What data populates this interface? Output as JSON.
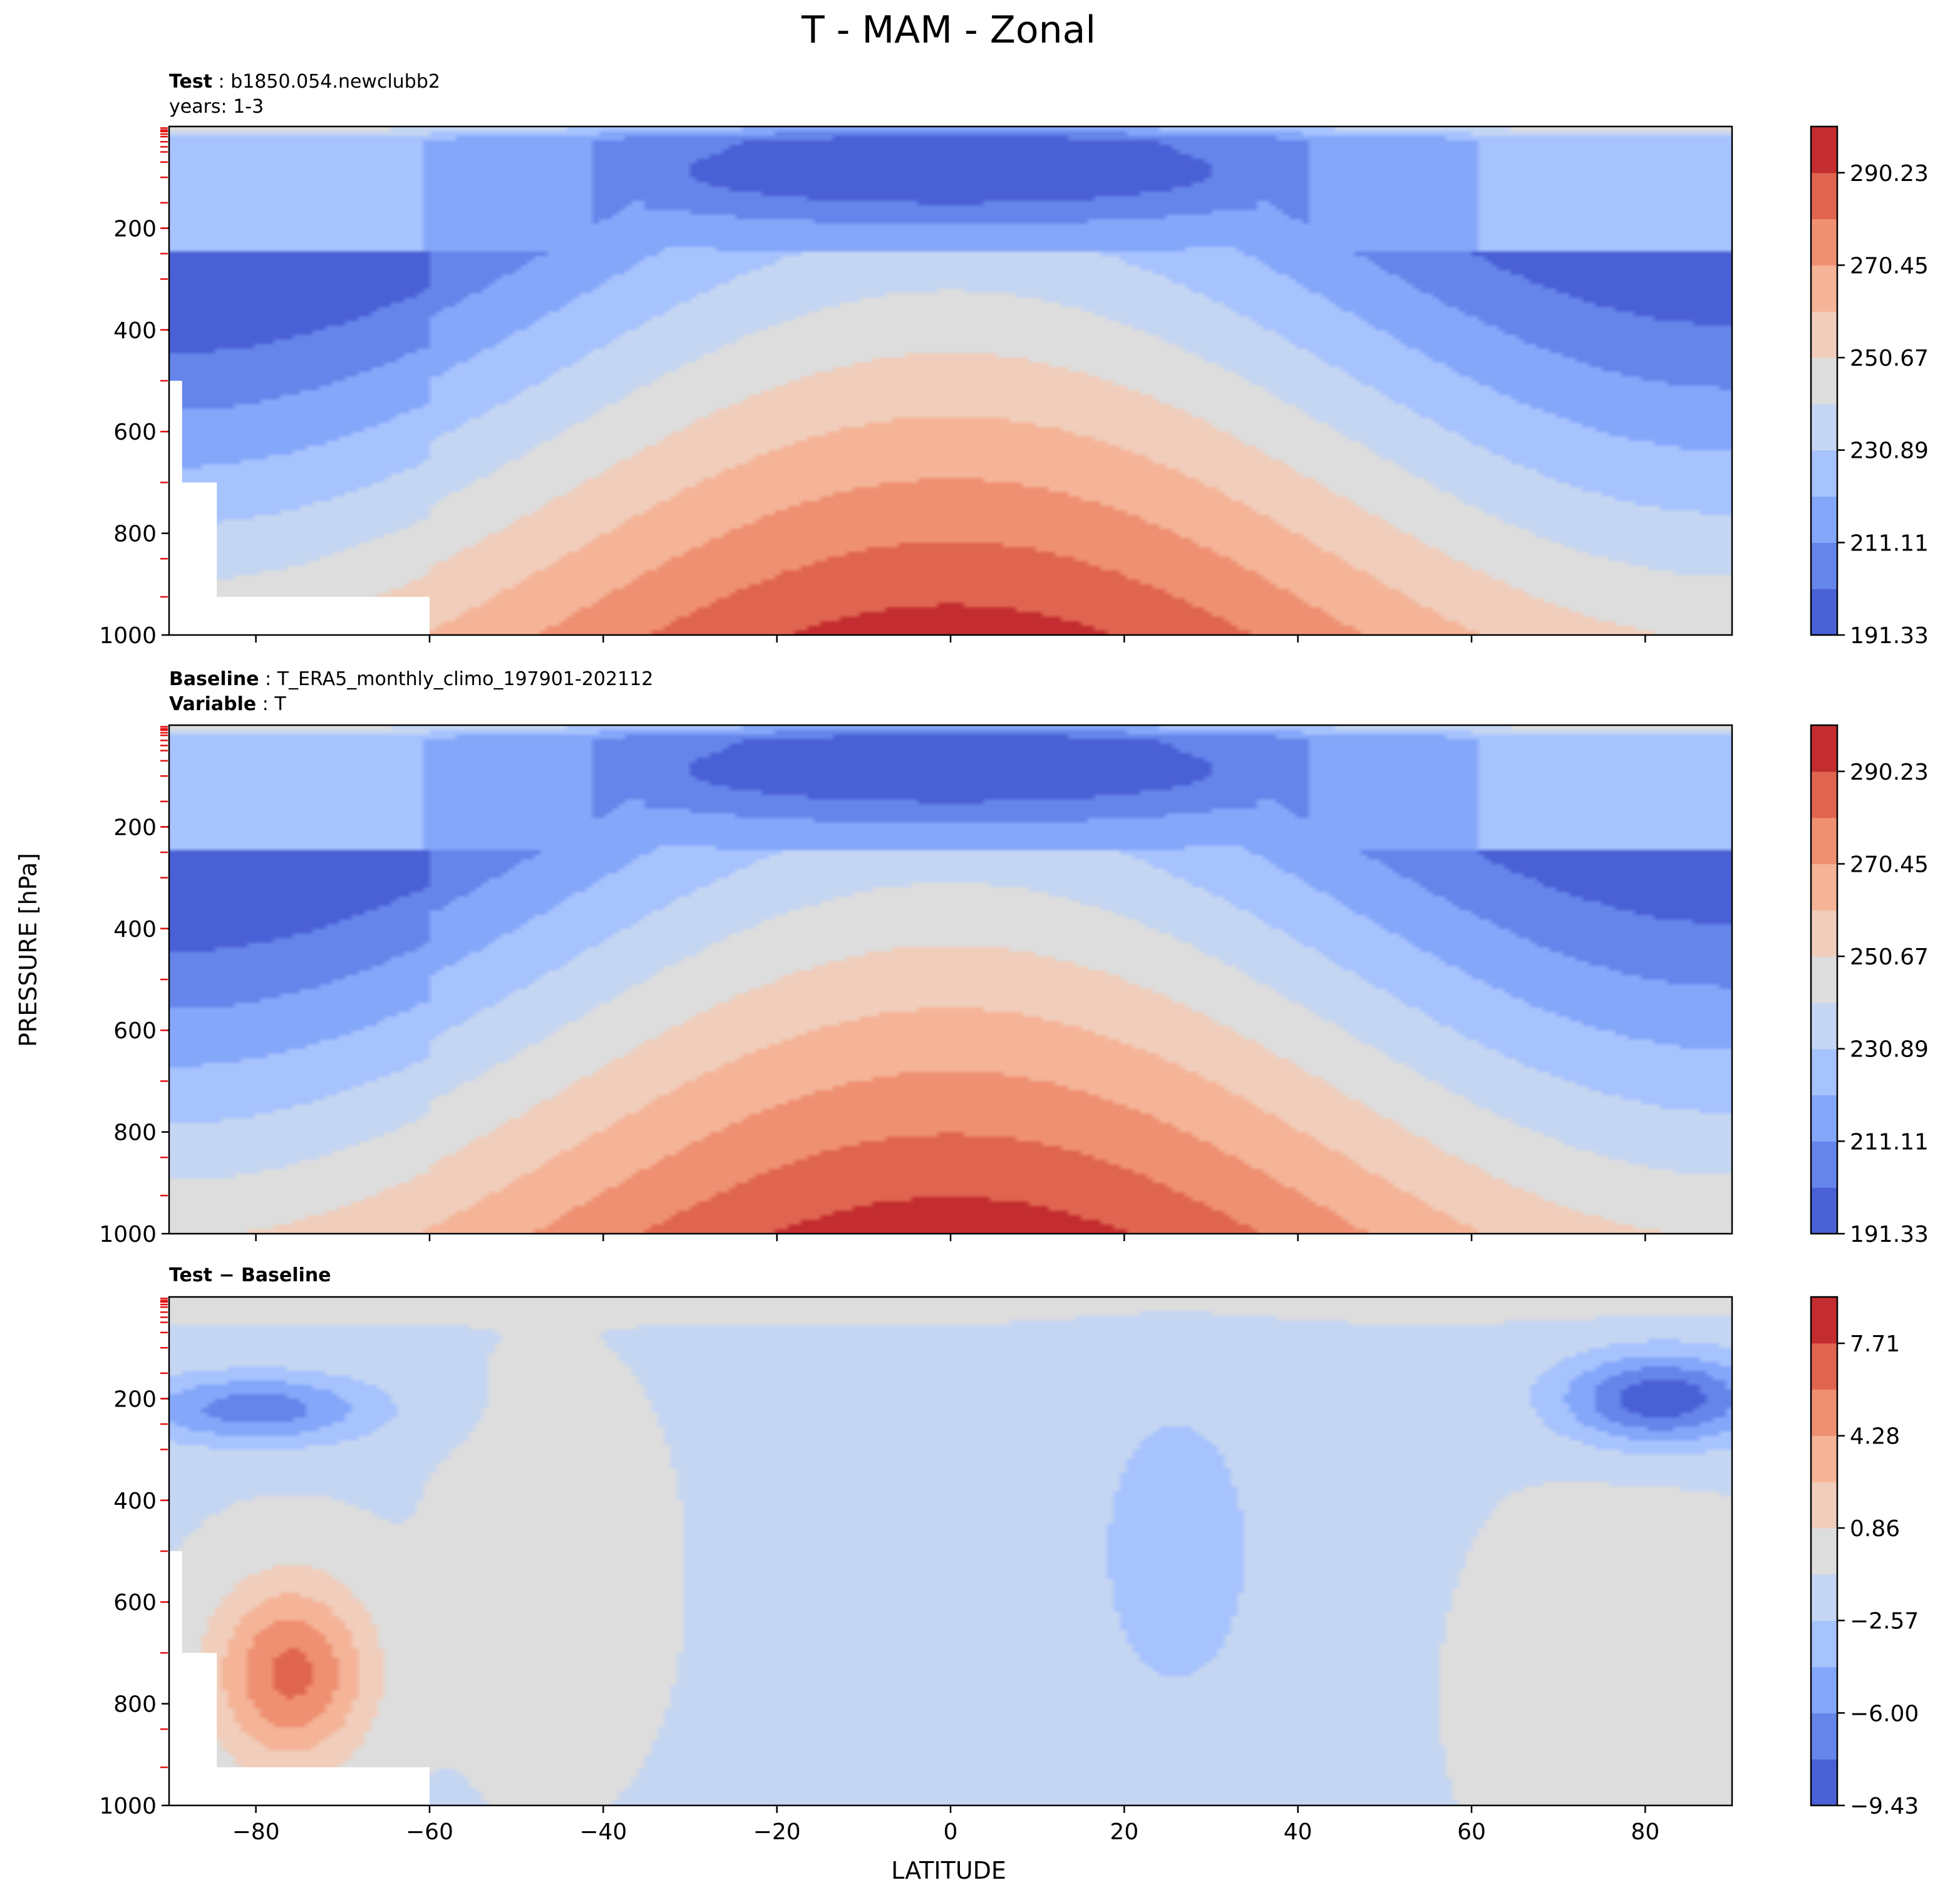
{
  "figure": {
    "title": "T - MAM - Zonal",
    "xlabel": "LATITUDE",
    "ylabel": "PRESSURE [hPa]"
  },
  "panels": [
    {
      "info": [
        {
          "key": "Test",
          "value": "b1850.054.newclubb2"
        },
        {
          "key": "",
          "value": "years: 1-3"
        }
      ]
    },
    {
      "info": [
        {
          "key": "Baseline",
          "value": "T_ERA5_monthly_climo_197901-202112"
        },
        {
          "key": "Variable",
          "value": "T"
        }
      ]
    },
    {
      "info": [
        {
          "key": "Test − Baseline",
          "value": ""
        }
      ]
    }
  ],
  "colors": {
    "diverging": [
      "#4a60d5",
      "#6585ea",
      "#85a7fa",
      "#a7c3fe",
      "#c5d6f2",
      "#dddddd",
      "#f1cdbb",
      "#f5b497",
      "#ef9072",
      "#e06550",
      "#c32d2f"
    ]
  },
  "chart_data": [
    {
      "type": "heatmap",
      "name": "test",
      "x_axis": {
        "range": [
          -90,
          90
        ],
        "ticks": [
          -80,
          -60,
          -40,
          -20,
          0,
          20,
          40,
          60,
          80
        ],
        "tick_labels": [
          "−80",
          "−60",
          "−40",
          "−20",
          "0",
          "20",
          "40",
          "60",
          "80"
        ]
      },
      "y_axis": {
        "range": [
          1000,
          0
        ],
        "ticks": [
          200,
          400,
          600,
          800,
          1000
        ]
      },
      "colorbar": {
        "levels": [
          191.33,
          201.22,
          211.11,
          221.0,
          230.89,
          240.78,
          250.67,
          260.56,
          270.45,
          280.34,
          290.23,
          300.12
        ],
        "tick_values": [
          191.33,
          211.11,
          230.89,
          250.67,
          270.45,
          290.23
        ],
        "tick_labels": [
          "191.33",
          "211.11",
          "230.89",
          "250.67",
          "270.45",
          "290.23"
        ]
      },
      "params": {
        "tmax": 295,
        "tmin_high": 228,
        "cold_core": 200,
        "spole_bias": 0
      }
    },
    {
      "type": "heatmap",
      "name": "baseline",
      "x_axis": {
        "range": [
          -90,
          90
        ],
        "ticks": [
          -80,
          -60,
          -40,
          -20,
          0,
          20,
          40,
          60,
          80
        ],
        "tick_labels": [
          "−80",
          "−60",
          "−40",
          "−20",
          "0",
          "20",
          "40",
          "60",
          "80"
        ]
      },
      "y_axis": {
        "range": [
          1000,
          0
        ],
        "ticks": [
          200,
          400,
          600,
          800,
          1000
        ]
      },
      "colorbar": {
        "levels": [
          191.33,
          201.22,
          211.11,
          221.0,
          230.89,
          240.78,
          250.67,
          260.56,
          270.45,
          280.34,
          290.23,
          300.12
        ],
        "tick_values": [
          191.33,
          211.11,
          230.89,
          250.67,
          270.45,
          290.23
        ],
        "tick_labels": [
          "191.33",
          "211.11",
          "230.89",
          "250.67",
          "270.45",
          "290.23"
        ]
      },
      "params": {
        "tmax": 296,
        "tmin_high": 229,
        "cold_core": 200,
        "spole_bias": 0
      }
    },
    {
      "type": "heatmap",
      "name": "difference",
      "x_axis": {
        "range": [
          -90,
          90
        ],
        "ticks": [
          -80,
          -60,
          -40,
          -20,
          0,
          20,
          40,
          60,
          80
        ],
        "tick_labels": [
          "−80",
          "−60",
          "−40",
          "−20",
          "0",
          "20",
          "40",
          "60",
          "80"
        ]
      },
      "y_axis": {
        "range": [
          1000,
          0
        ],
        "ticks": [
          200,
          400,
          600,
          800,
          1000
        ]
      },
      "colorbar": {
        "levels": [
          -9.43,
          -7.71,
          -6.0,
          -4.28,
          -2.57,
          -0.86,
          0.86,
          2.57,
          4.28,
          6.0,
          7.71,
          9.43
        ],
        "tick_values": [
          -9.43,
          -6.0,
          -2.57,
          0.86,
          4.28,
          7.71
        ],
        "tick_labels": [
          "−9.43",
          "−6.00",
          "−2.57",
          "0.86",
          "4.28",
          "7.71"
        ]
      }
    }
  ]
}
